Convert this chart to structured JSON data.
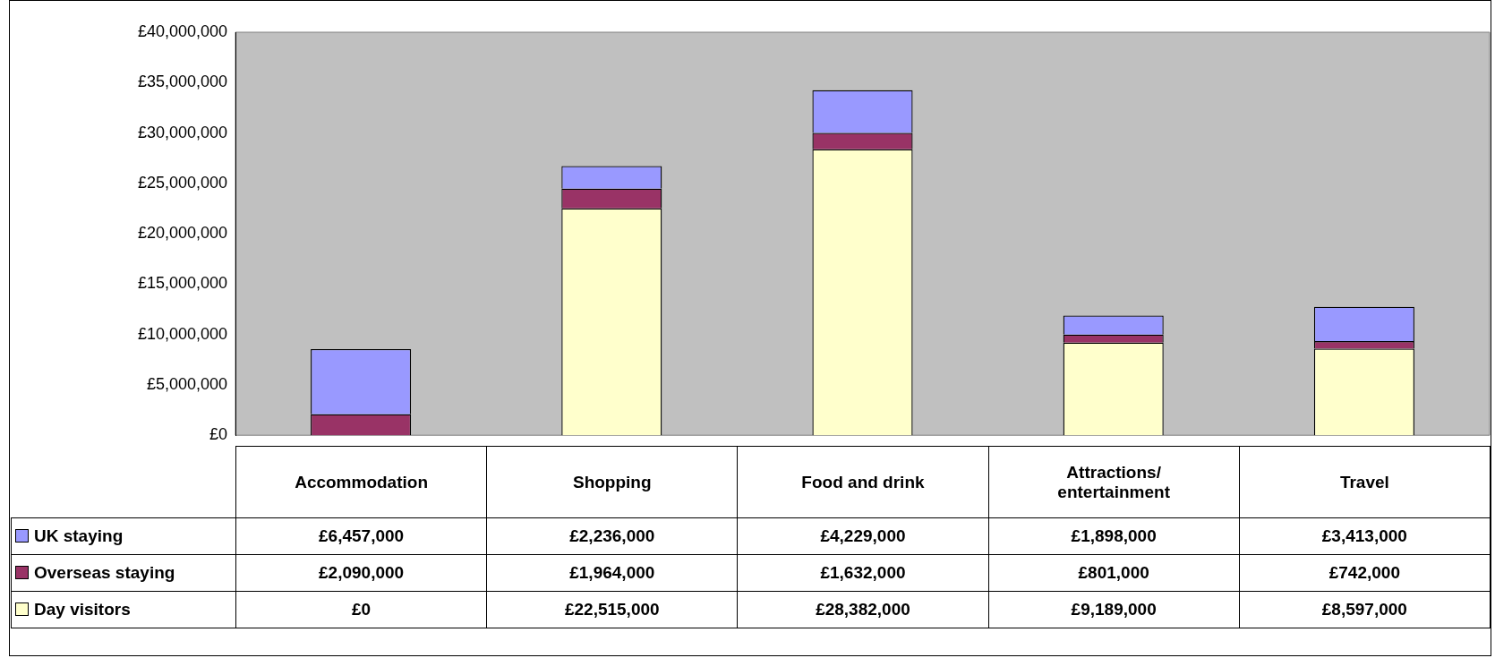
{
  "chart_data": {
    "type": "bar",
    "stacked": true,
    "categories": [
      "Accommodation",
      "Shopping",
      "Food and drink",
      "Attractions/ entertainment",
      "Travel"
    ],
    "series": [
      {
        "name": "Day visitors",
        "color": "#ffffcc",
        "values": [
          0,
          22515000,
          28382000,
          9189000,
          8597000
        ],
        "value_labels": [
          "£0",
          "£22,515,000",
          "£28,382,000",
          "£9,189,000",
          "£8,597,000"
        ]
      },
      {
        "name": "Overseas staying",
        "color": "#993366",
        "values": [
          2090000,
          1964000,
          1632000,
          801000,
          742000
        ],
        "value_labels": [
          "£2,090,000",
          "£1,964,000",
          "£1,632,000",
          "£801,000",
          "£742,000"
        ]
      },
      {
        "name": "UK staying",
        "color": "#9999ff",
        "values": [
          6457000,
          2236000,
          4229000,
          1898000,
          3413000
        ],
        "value_labels": [
          "£6,457,000",
          "£2,236,000",
          "£4,229,000",
          "£1,898,000",
          "£3,413,000"
        ]
      }
    ],
    "ylim": [
      0,
      40000000
    ],
    "yticks": [
      {
        "value": 0,
        "label": "£0"
      },
      {
        "value": 5000000,
        "label": "£5,000,000"
      },
      {
        "value": 10000000,
        "label": "£10,000,000"
      },
      {
        "value": 15000000,
        "label": "£15,000,000"
      },
      {
        "value": 20000000,
        "label": "£20,000,000"
      },
      {
        "value": 25000000,
        "label": "£25,000,000"
      },
      {
        "value": 30000000,
        "label": "£30,000,000"
      },
      {
        "value": 35000000,
        "label": "£35,000,000"
      },
      {
        "value": 40000000,
        "label": "£40,000,000"
      }
    ],
    "grid": false,
    "legend": "bottom"
  }
}
